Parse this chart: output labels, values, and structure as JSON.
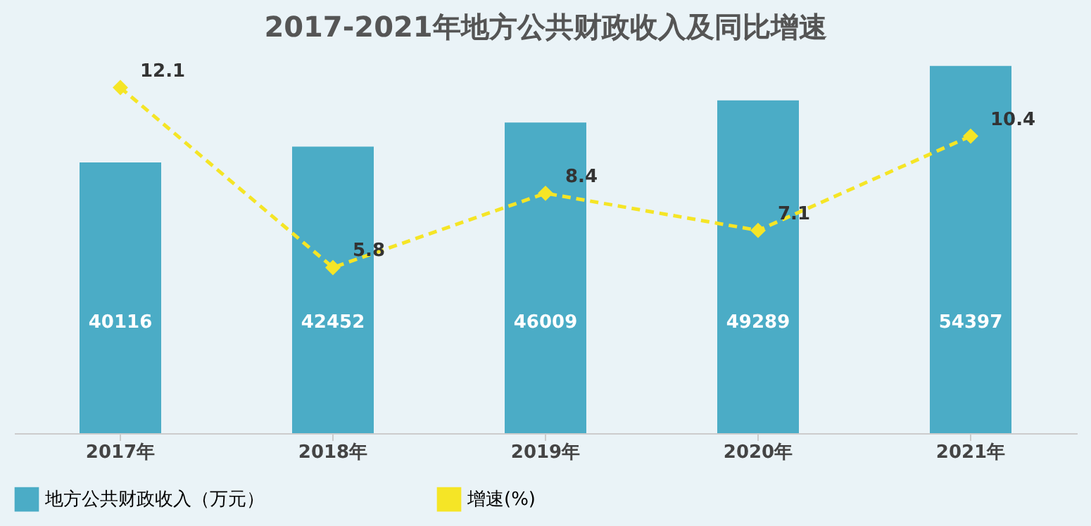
{
  "chart_data": {
    "type": "bar",
    "title": "2017-2021年地方公共财政收入及同比增速",
    "categories": [
      "2017年",
      "2018年",
      "2019年",
      "2020年",
      "2021年"
    ],
    "series": [
      {
        "name": "地方公共财政收入（万元）",
        "color": "#4bacc6",
        "values": [
          40116,
          42452,
          46009,
          49289,
          54397
        ]
      },
      {
        "name": "增速(%)",
        "type": "line",
        "axis": "y2",
        "color": "#f5e526",
        "marker": "diamond",
        "line_style": "dashed",
        "values": [
          12.1,
          5.8,
          8.4,
          7.1,
          10.4
        ]
      }
    ],
    "data_labels": true,
    "grid": false,
    "legend": "bottom",
    "tick_labels": "x"
  }
}
